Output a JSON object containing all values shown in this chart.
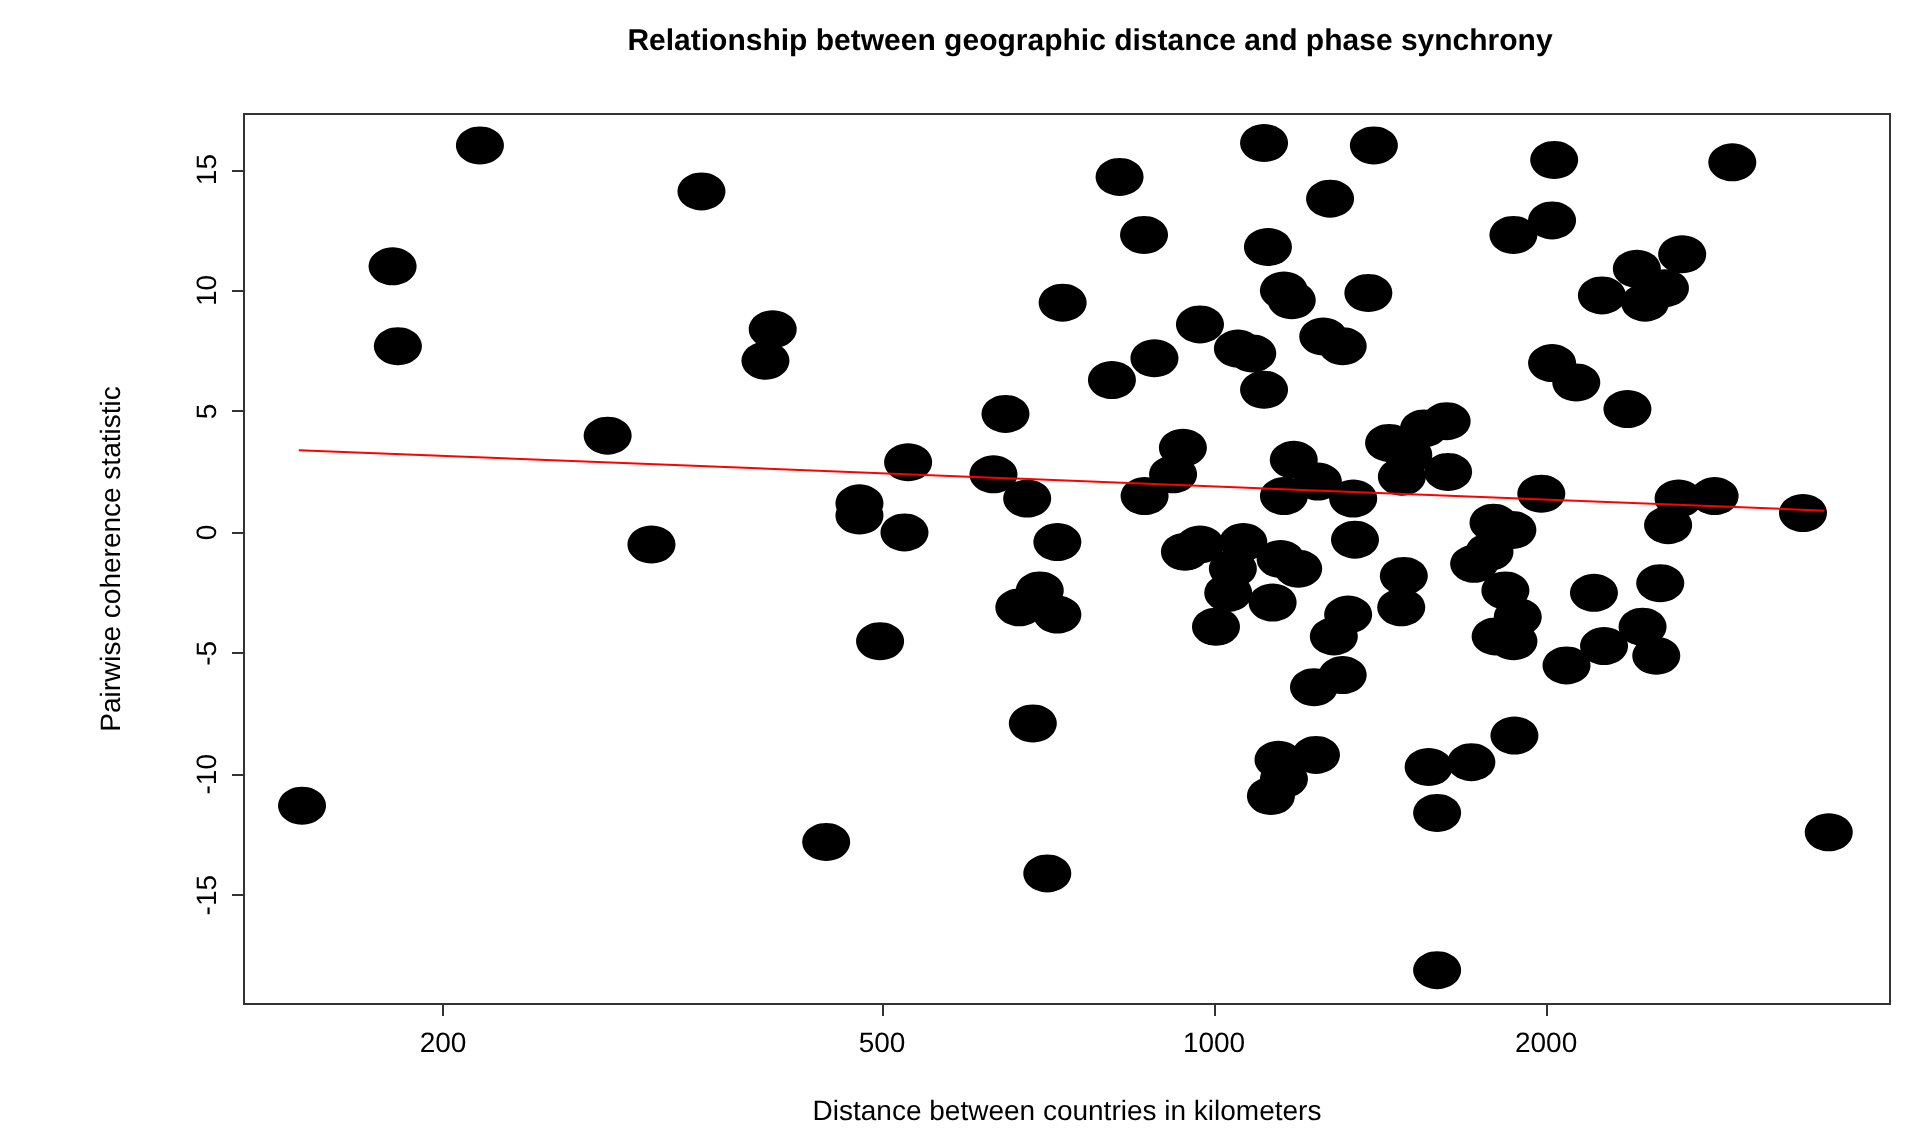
{
  "chart_data": {
    "type": "scatter",
    "title": "Relationship between geographic distance and phase synchrony",
    "xlabel": "Distance between countries in kilometers",
    "ylabel": "Pairwise coherence statistic",
    "log": "x",
    "xlim": [
      132,
      4100
    ],
    "xticks": [
      200,
      500,
      1000,
      2000
    ],
    "ylim": [
      -19.5,
      17.3
    ],
    "yticks": [
      -15,
      -10,
      -5,
      0,
      5,
      10,
      15
    ],
    "grid": false,
    "marker": "circle",
    "series": [
      {
        "color": "#000000",
        "x": [
          149,
          180,
          182,
          216,
          343,
          398,
          392,
          282,
          309,
          445,
          477,
          477,
          498,
          528,
          524,
          647,
          631,
          677,
          721,
          695,
          666,
          721,
          685,
          706,
          729,
          821,
          864,
          808,
          883,
          971,
          937,
          918,
          865,
          1110,
          1274,
          1119,
          1157,
          1176,
          1051,
          1083,
          1110,
          1256,
          1308,
          1181,
          1242,
          1157,
          1337,
          1342,
          941,
          971,
          1063,
          1040,
          1030,
          1004,
          1149,
          1192,
          1130,
          1323,
          1284,
          1308,
          1232,
          1237,
          1144,
          1157,
          1126,
          1396,
          2034,
          2950,
          2025,
          1868,
          2657,
          2417,
          2563,
          2459,
          2247,
          1380,
          2025,
          2130,
          2370,
          1625,
          1550,
          1441,
          1500,
          1630,
          1480,
          1980,
          2637,
          2843,
          2580,
          3419,
          1792,
          1864,
          1777,
          1721,
          1486,
          2538,
          2210,
          1837,
          1478,
          1885,
          1800,
          1868,
          2446,
          2257,
          2517,
          2087,
          1872,
          1711,
          1565,
          1593,
          3608,
          1593
        ],
        "values": [
          -11.3,
          11.0,
          7.7,
          16.0,
          14.1,
          8.4,
          7.1,
          4.0,
          -0.5,
          -12.8,
          1.2,
          0.7,
          -4.5,
          2.9,
          0.0,
          4.9,
          2.4,
          1.4,
          -0.4,
          -2.4,
          -3.1,
          -3.4,
          -7.9,
          -14.1,
          9.5,
          14.7,
          12.3,
          6.3,
          7.2,
          8.6,
          3.5,
          2.4,
          1.5,
          16.1,
          13.8,
          11.8,
          10.0,
          9.6,
          7.6,
          7.4,
          5.9,
          8.1,
          7.7,
          3.0,
          2.1,
          1.5,
          1.4,
          -0.3,
          -0.8,
          -0.5,
          -0.4,
          -1.5,
          -2.5,
          -3.9,
          -1.1,
          -1.5,
          -2.9,
          -3.4,
          -4.3,
          -5.9,
          -6.4,
          -9.2,
          -9.4,
          -10.2,
          -10.9,
          16.0,
          15.4,
          15.3,
          12.9,
          12.3,
          11.5,
          10.9,
          10.1,
          9.5,
          9.8,
          9.9,
          7.0,
          6.2,
          5.1,
          4.6,
          4.3,
          3.7,
          3.2,
          2.5,
          2.3,
          1.6,
          1.4,
          1.5,
          0.3,
          0.8,
          0.4,
          0.1,
          -0.8,
          -1.3,
          -1.8,
          -2.1,
          -2.5,
          -2.4,
          -3.1,
          -3.5,
          -4.3,
          -4.5,
          -3.9,
          -4.7,
          -5.1,
          -5.5,
          -8.4,
          -9.5,
          -9.7,
          -11.6,
          -12.4,
          -18.1
        ]
      },
      {
        "type": "line",
        "color": "#ff0000",
        "marker": "none",
        "x": [
          148,
          3575
        ],
        "values": [
          3.4,
          0.9
        ]
      }
    ]
  }
}
